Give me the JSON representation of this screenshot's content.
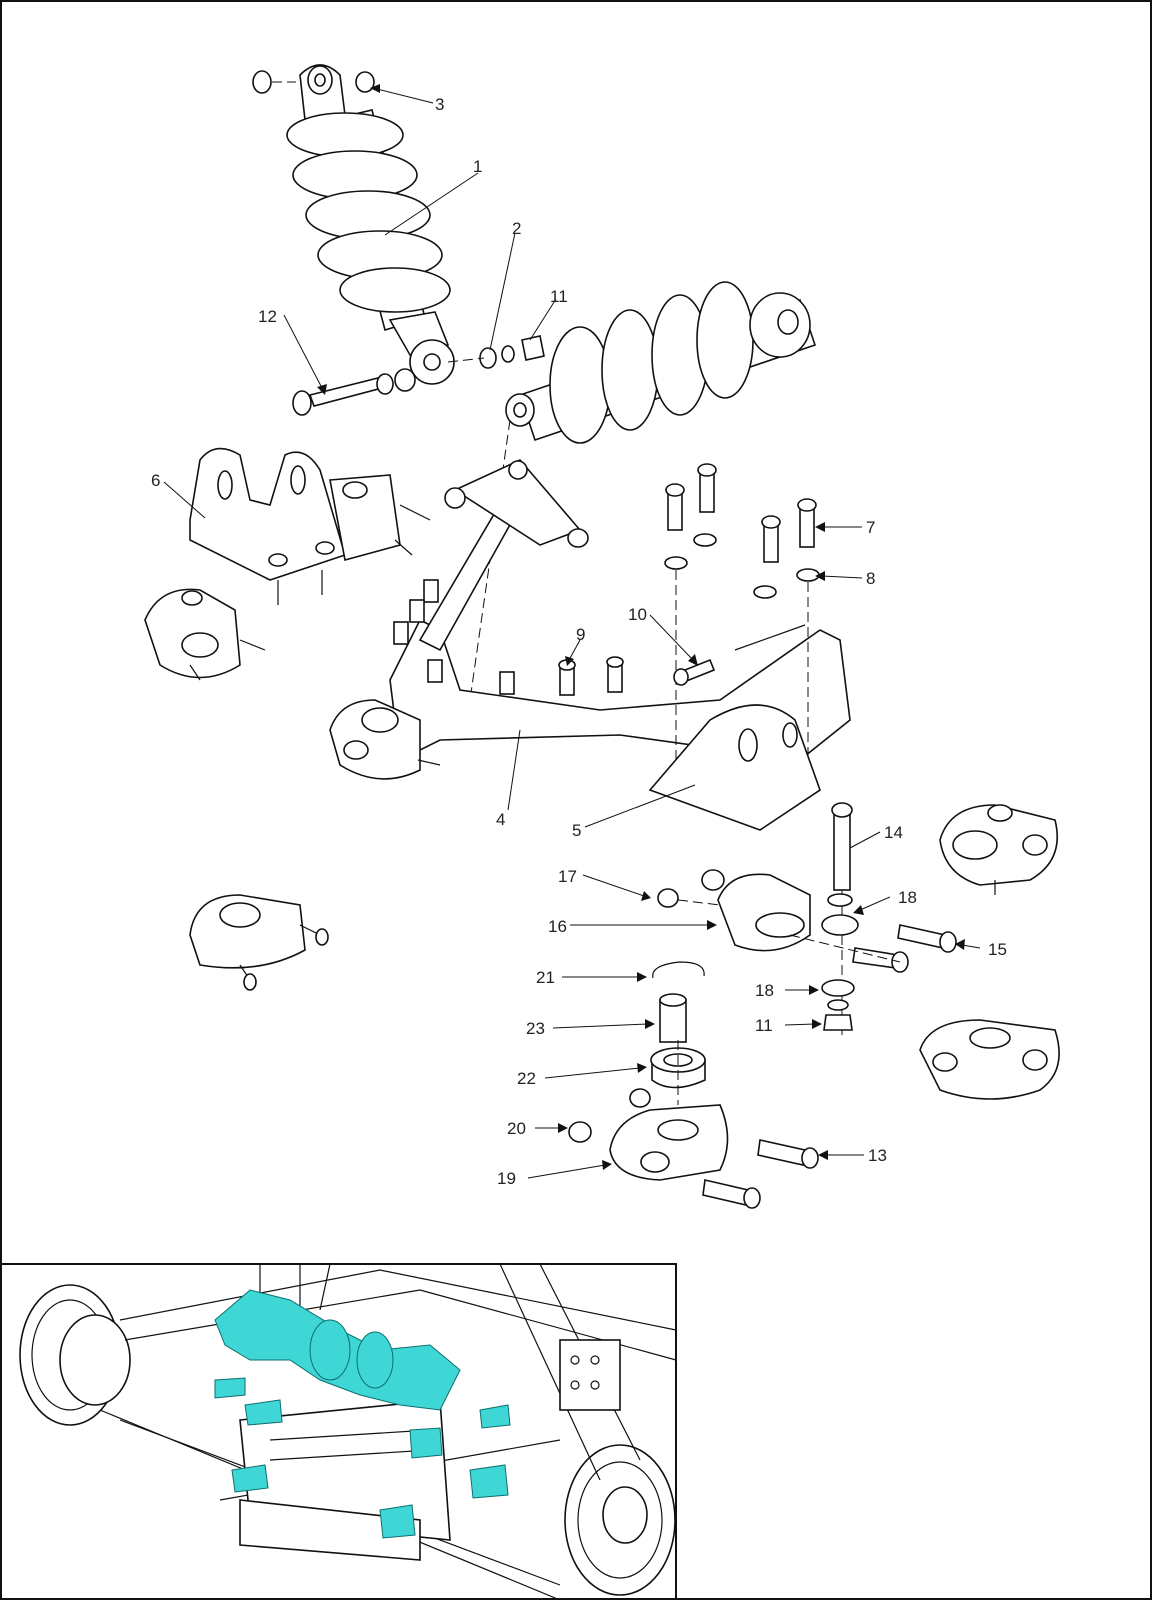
{
  "callouts": [
    {
      "id": "3",
      "text": "3"
    },
    {
      "id": "1",
      "text": "1"
    },
    {
      "id": "2",
      "text": "2"
    },
    {
      "id": "11a",
      "text": "11"
    },
    {
      "id": "12",
      "text": "12"
    },
    {
      "id": "6",
      "text": "6"
    },
    {
      "id": "7",
      "text": "7"
    },
    {
      "id": "8",
      "text": "8"
    },
    {
      "id": "10",
      "text": "10"
    },
    {
      "id": "9",
      "text": "9"
    },
    {
      "id": "4",
      "text": "4"
    },
    {
      "id": "5",
      "text": "5"
    },
    {
      "id": "14",
      "text": "14"
    },
    {
      "id": "17",
      "text": "17"
    },
    {
      "id": "18a",
      "text": "18"
    },
    {
      "id": "16",
      "text": "16"
    },
    {
      "id": "15",
      "text": "15"
    },
    {
      "id": "21",
      "text": "21"
    },
    {
      "id": "18b",
      "text": "18"
    },
    {
      "id": "11b",
      "text": "11"
    },
    {
      "id": "23",
      "text": "23"
    },
    {
      "id": "22",
      "text": "22"
    },
    {
      "id": "20",
      "text": "20"
    },
    {
      "id": "13",
      "text": "13"
    },
    {
      "id": "19",
      "text": "19"
    }
  ],
  "colors": {
    "highlight": "#3fd6d6",
    "line": "#111111",
    "background": "#ffffff"
  }
}
